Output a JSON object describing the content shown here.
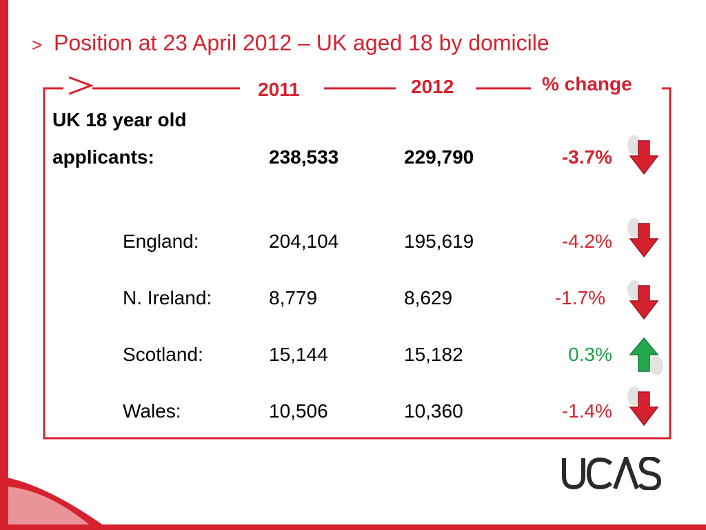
{
  "slide": {
    "title_chevron": ">",
    "title": "Position at 23 April 2012 – UK aged 18 by domicile"
  },
  "table": {
    "headers": {
      "col_2011": "2011",
      "col_2012": "2012",
      "col_change": "% change"
    },
    "total": {
      "label_line1": "UK 18 year old",
      "label_line2": "applicants:",
      "v2011": "238,533",
      "v2012": "229,790",
      "change": "-3.7%",
      "direction": "down"
    },
    "rows": [
      {
        "label": "England:",
        "v2011": "204,104",
        "v2012": "195,619",
        "change": "-4.2%",
        "direction": "down"
      },
      {
        "label": "N. Ireland:",
        "v2011": "8,779",
        "v2012": "8,629",
        "change": "-1.7%",
        "direction": "down"
      },
      {
        "label": "Scotland:",
        "v2011": "15,144",
        "v2012": "15,182",
        "change": "0.3%",
        "direction": "up"
      },
      {
        "label": "Wales:",
        "v2011": "10,506",
        "v2012": "10,360",
        "change": "-1.4%",
        "direction": "down"
      }
    ]
  },
  "colors": {
    "brand_red": "#d6222f",
    "positive_green": "#1aa047",
    "arrow_down": "#d6222f",
    "arrow_up": "#22a84a"
  },
  "logo": {
    "text": "UCAS"
  }
}
